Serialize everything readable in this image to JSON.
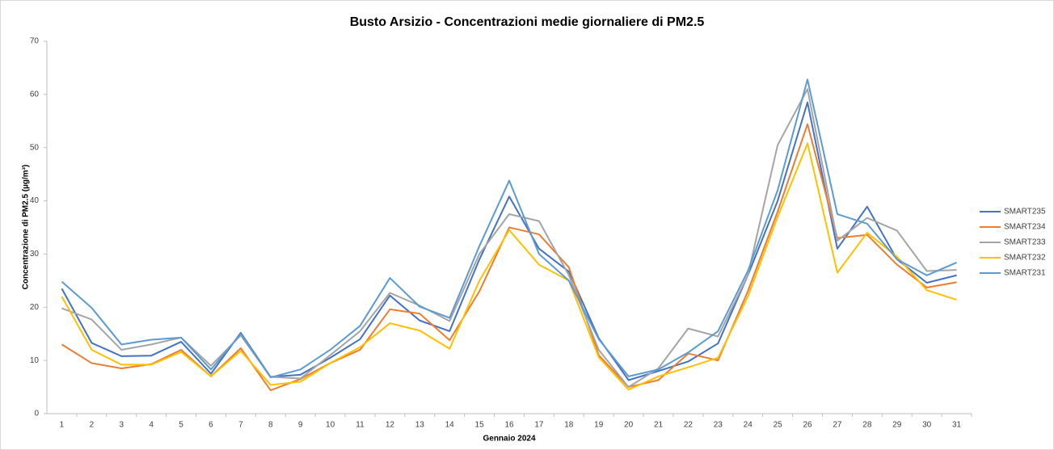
{
  "chart_data": {
    "type": "line",
    "title": "Busto Arsizio - Concentrazioni medie giornaliere di PM2.5",
    "xlabel": "Gennaio 2024",
    "ylabel": "Concentrazione di PM2.5 (µg/m³)",
    "categories": [
      "1",
      "2",
      "3",
      "4",
      "5",
      "6",
      "7",
      "8",
      "9",
      "10",
      "11",
      "12",
      "13",
      "14",
      "15",
      "16",
      "17",
      "18",
      "19",
      "20",
      "21",
      "22",
      "23",
      "24",
      "25",
      "26",
      "27",
      "28",
      "29",
      "30",
      "31"
    ],
    "ylim": [
      0,
      70
    ],
    "yticks": [
      0,
      10,
      20,
      30,
      40,
      50,
      60,
      70
    ],
    "grid": false,
    "legend": "right",
    "series": [
      {
        "name": "SMART235",
        "color": "#4472c4",
        "values": [
          23.5,
          13.3,
          10.8,
          10.9,
          13.5,
          7.5,
          15.2,
          6.9,
          7.3,
          10.5,
          14,
          22.2,
          17.5,
          15.5,
          29,
          40.8,
          31,
          26.7,
          14.2,
          6.3,
          8,
          9.8,
          13.2,
          26,
          40,
          58.5,
          31,
          38.9,
          29,
          24.6,
          26
        ]
      },
      {
        "name": "SMART234",
        "color": "#ed7d31",
        "values": [
          13,
          9.5,
          8.5,
          9.3,
          12,
          7,
          12.3,
          4.4,
          6.5,
          9.5,
          12,
          19.6,
          18.8,
          13.8,
          23,
          35,
          33.7,
          27.5,
          11,
          5,
          6.3,
          11.3,
          10,
          23,
          38,
          54.4,
          33,
          33.6,
          28,
          23.7,
          24.7
        ]
      },
      {
        "name": "SMART233",
        "color": "#a5a5a5",
        "values": [
          19.8,
          17.7,
          12,
          13,
          14.3,
          9,
          14.7,
          6.9,
          6.6,
          11,
          15.5,
          22.7,
          20.3,
          17.4,
          30,
          37.5,
          36.2,
          26,
          12,
          5,
          8.5,
          16,
          14.5,
          26,
          50.5,
          61,
          32.5,
          36.8,
          34.4,
          26.8,
          27
        ]
      },
      {
        "name": "SMART232",
        "color": "#ffc000",
        "values": [
          22,
          12,
          9.2,
          9.2,
          11.6,
          7,
          11.8,
          5.4,
          6,
          9.5,
          12.5,
          17,
          15.6,
          12.2,
          25,
          34.5,
          28,
          25,
          10.6,
          4.5,
          7,
          8.7,
          10.5,
          22,
          37,
          50.8,
          26.5,
          34,
          29.5,
          23.2,
          21.4
        ]
      },
      {
        "name": "SMART231",
        "color": "#5b9bd5",
        "values": [
          24.8,
          19.9,
          13,
          13.9,
          14.3,
          8.3,
          15,
          6.8,
          8.3,
          12,
          16.5,
          25.5,
          20.1,
          18,
          31.5,
          43.8,
          30,
          25,
          14,
          7,
          8.3,
          11.5,
          15.5,
          26.8,
          42,
          62.8,
          37.5,
          35.7,
          29,
          26,
          28.4
        ]
      }
    ]
  }
}
